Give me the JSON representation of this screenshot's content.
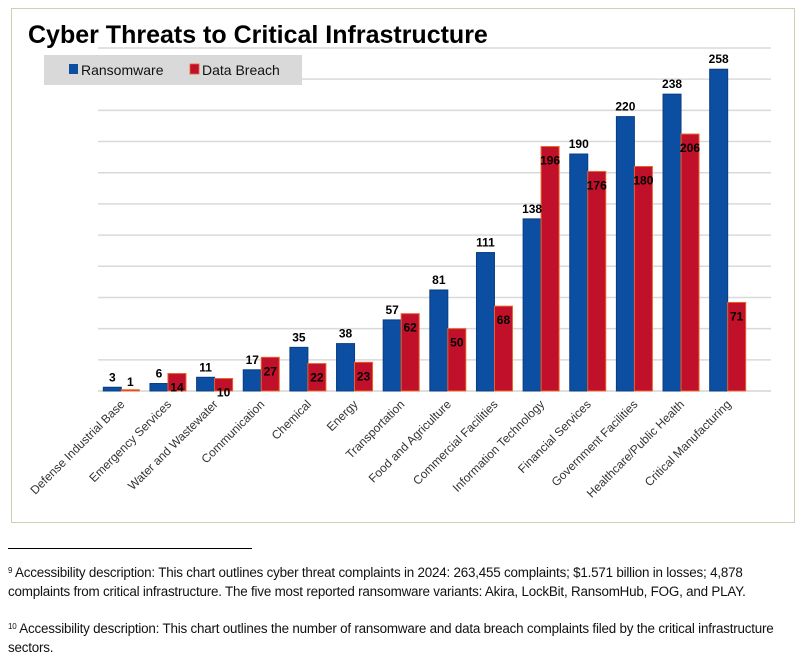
{
  "chart_data": {
    "type": "bar",
    "title": "Cyber Threats to Critical Infrastructure",
    "categories": [
      "Defense Industrial Base",
      "Emergency Services",
      "Water and Wastewater",
      "Communication",
      "Chemical",
      "Energy",
      "Transportation",
      "Food and Agriculture",
      "Commercial Facilities",
      "Information Technology",
      "Financial Services",
      "Government Facilities",
      "Healthcare/Public Health",
      "Critical Manufacturing"
    ],
    "series": [
      {
        "name": "Ransomware",
        "color": "#0b4ea2",
        "values": [
          3,
          6,
          11,
          17,
          35,
          38,
          57,
          81,
          111,
          138,
          190,
          220,
          238,
          258
        ]
      },
      {
        "name": "Data Breach",
        "color": "#c0102a",
        "values": [
          1,
          14,
          10,
          27,
          22,
          23,
          62,
          50,
          68,
          196,
          176,
          180,
          206,
          71
        ]
      }
    ],
    "xlabel": "",
    "ylabel": "",
    "ylim": [
      0,
      275
    ],
    "grid": true,
    "y_axis_labels_shown": false,
    "legend_position": "top-left"
  },
  "footnotes": [
    {
      "mark": "9",
      "text": "Accessibility description: This chart outlines cyber threat complaints in 2024: 263,455 complaints; $1.571 billion in losses; 4,878 complaints from critical infrastructure. The five most reported ransomware variants: Akira, LockBit, RansomHub, FOG, and PLAY."
    },
    {
      "mark": "10",
      "text": "Accessibility description: This chart outlines the number of ransomware and data breach complaints filed by the critical infrastructure sectors."
    }
  ]
}
